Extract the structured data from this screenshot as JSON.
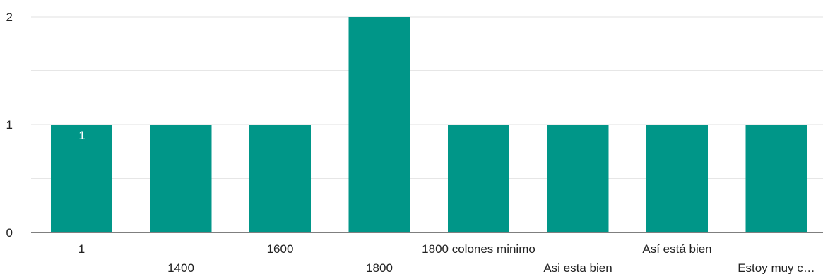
{
  "chart_data": {
    "type": "bar",
    "categories": [
      "1",
      "1400",
      "1600",
      "1800",
      "1800 colones minimo",
      "Asi esta bien",
      "Así está bien",
      "Estoy muy c…"
    ],
    "values": [
      1,
      1,
      1,
      2,
      1,
      1,
      1,
      1
    ],
    "data_labels": [
      "1",
      "",
      "",
      "",
      "",
      "",
      "",
      ""
    ],
    "ylim": [
      0,
      2
    ],
    "yticks": [
      "0",
      "1",
      "2"
    ],
    "grid": true,
    "minor_grid": true,
    "bar_color": "#009688",
    "grid_color": "#e6e6e6",
    "axis_color": "#555555"
  }
}
